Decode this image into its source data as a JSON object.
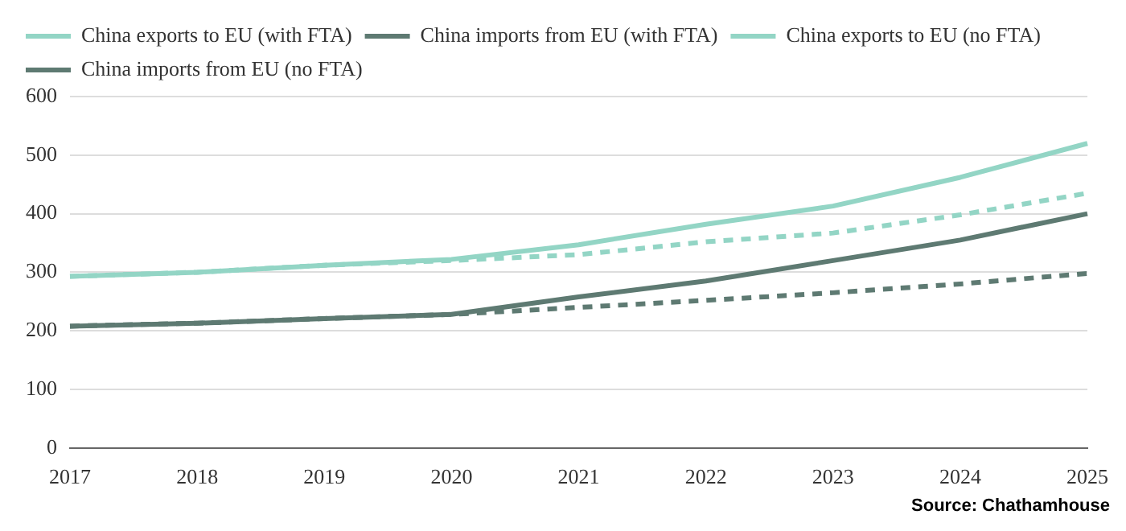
{
  "chart_data": {
    "type": "line",
    "categories": [
      "2017",
      "2018",
      "2019",
      "2020",
      "2021",
      "2022",
      "2023",
      "2024",
      "2025"
    ],
    "series": [
      {
        "name": "China exports to EU (with FTA)",
        "color": "#93d5c5",
        "line_style": "solid",
        "values": [
          293,
          300,
          312,
          322,
          347,
          382,
          413,
          462,
          520
        ]
      },
      {
        "name": "China imports from EU (with FTA)",
        "color": "#5e7a72",
        "line_style": "solid",
        "values": [
          208,
          213,
          221,
          228,
          258,
          285,
          320,
          355,
          400
        ]
      },
      {
        "name": "China exports to EU (no FTA)",
        "color": "#93d5c5",
        "line_style": "dashed",
        "values": [
          293,
          300,
          312,
          320,
          330,
          352,
          367,
          398,
          435
        ]
      },
      {
        "name": "China imports from EU (no FTA)",
        "color": "#5e7a72",
        "line_style": "dashed",
        "values": [
          208,
          213,
          221,
          228,
          240,
          252,
          265,
          280,
          298
        ]
      }
    ],
    "ylim": [
      0,
      600
    ],
    "yticks": [
      0,
      100,
      200,
      300,
      400,
      500,
      600
    ],
    "grid": "y",
    "legend": "top left",
    "marker": "none",
    "annotations": [
      "Source: Chathamhouse"
    ]
  }
}
